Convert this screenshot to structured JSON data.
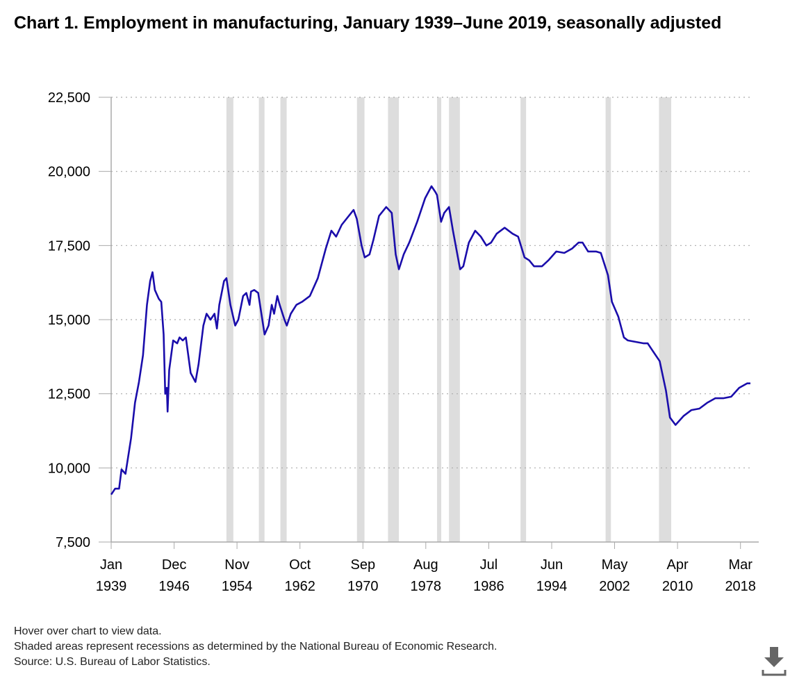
{
  "title": "Chart 1. Employment in manufacturing, January 1939–June 2019, seasonally adjusted",
  "notes": [
    "Hover over chart to view data.",
    "Shaded areas represent recessions as determined by the National Bureau of Economic Research.",
    "Source: U.S. Bureau of Labor Statistics."
  ],
  "download_icon": "download-icon",
  "colors": {
    "line": "#1a0dab",
    "recession": "#dddddd",
    "grid": "#aaaaaa"
  },
  "chart_data": {
    "type": "line",
    "title": "Chart 1. Employment in manufacturing, January 1939–June 2019, seasonally adjusted",
    "xlabel": "",
    "ylabel": "",
    "xlim": [
      1939.0,
      2019.42
    ],
    "ylim": [
      7500,
      22500
    ],
    "grid": "horizontal dotted",
    "yticks": [
      7500,
      10000,
      12500,
      15000,
      17500,
      20000,
      22500
    ],
    "ytick_labels": [
      "7,500",
      "10,000",
      "12,500",
      "15,000",
      "17,500",
      "20,000",
      "22,500"
    ],
    "xticks": [
      {
        "x": 1939.0,
        "label": [
          "Jan",
          "1939"
        ]
      },
      {
        "x": 1946.92,
        "label": [
          "Dec",
          "1946"
        ]
      },
      {
        "x": 1954.83,
        "label": [
          "Nov",
          "1954"
        ]
      },
      {
        "x": 1962.75,
        "label": [
          "Oct",
          "1962"
        ]
      },
      {
        "x": 1970.67,
        "label": [
          "Sep",
          "1970"
        ]
      },
      {
        "x": 1978.58,
        "label": [
          "Aug",
          "1978"
        ]
      },
      {
        "x": 1986.5,
        "label": [
          "Jul",
          "1986"
        ]
      },
      {
        "x": 1994.42,
        "label": [
          "Jun",
          "1994"
        ]
      },
      {
        "x": 2002.33,
        "label": [
          "May",
          "2002"
        ]
      },
      {
        "x": 2010.25,
        "label": [
          "Apr",
          "2010"
        ]
      },
      {
        "x": 2018.17,
        "label": [
          "Mar",
          "2018"
        ]
      }
    ],
    "recessions": [
      [
        1953.5,
        1954.37
      ],
      [
        1957.58,
        1958.29
      ],
      [
        1960.29,
        1961.08
      ],
      [
        1969.92,
        1970.87
      ],
      [
        1973.83,
        1975.2
      ],
      [
        1980.0,
        1980.5
      ],
      [
        1981.5,
        1982.87
      ],
      [
        1990.5,
        1991.2
      ],
      [
        2001.2,
        2001.87
      ],
      [
        2007.92,
        2009.45
      ]
    ],
    "series": [
      {
        "x": [
          1939.0,
          1939.5,
          1940.0,
          1940.3,
          1940.8,
          1941.5,
          1942.0,
          1942.5,
          1943.0,
          1943.5,
          1943.9,
          1944.2,
          1944.5,
          1945.0,
          1945.3,
          1945.6,
          1945.8,
          1946.0,
          1946.1,
          1946.3,
          1946.8,
          1947.3,
          1947.6,
          1948.0,
          1948.4,
          1949.0,
          1949.6,
          1950.0,
          1950.6,
          1951.0,
          1951.5,
          1952.0,
          1952.3,
          1952.6,
          1953.2,
          1953.5,
          1954.0,
          1954.6,
          1955.0,
          1955.6,
          1956.0,
          1956.4,
          1956.6,
          1957.0,
          1957.5,
          1958.3,
          1958.8,
          1959.2,
          1959.5,
          1959.9,
          1960.2,
          1960.8,
          1961.1,
          1961.6,
          1962.3,
          1963.0,
          1964.0,
          1965.0,
          1966.0,
          1966.7,
          1967.3,
          1968.0,
          1969.5,
          1969.9,
          1970.5,
          1970.9,
          1971.5,
          1972.0,
          1972.7,
          1973.6,
          1974.3,
          1974.8,
          1975.2,
          1975.8,
          1976.5,
          1977.5,
          1978.5,
          1979.3,
          1979.8,
          1980.0,
          1980.5,
          1980.9,
          1981.5,
          1982.0,
          1982.9,
          1983.3,
          1984.0,
          1984.8,
          1985.5,
          1986.2,
          1986.8,
          1987.5,
          1988.5,
          1989.5,
          1990.2,
          1991.0,
          1991.6,
          1992.2,
          1993.2,
          1994.0,
          1995.0,
          1996.0,
          1997.0,
          1997.8,
          1998.3,
          1999.0,
          2000.0,
          2000.6,
          2001.5,
          2002.0,
          2002.8,
          2003.5,
          2004.0,
          2005.0,
          2006.0,
          2006.5,
          2007.0,
          2008.0,
          2008.8,
          2009.3,
          2010.0,
          2011.0,
          2012.0,
          2013.0,
          2014.0,
          2015.0,
          2016.0,
          2017.0,
          2018.0,
          2019.0,
          2019.42
        ],
        "values": [
          9100,
          9300,
          9300,
          9950,
          9800,
          11000,
          12200,
          12900,
          13800,
          15500,
          16300,
          16600,
          16000,
          15700,
          15600,
          14500,
          12500,
          12700,
          11900,
          13300,
          14300,
          14200,
          14400,
          14300,
          14400,
          13200,
          12900,
          13500,
          14800,
          15200,
          15000,
          15200,
          14700,
          15500,
          16300,
          16400,
          15500,
          14800,
          15000,
          15800,
          15900,
          15500,
          15950,
          16000,
          15900,
          14500,
          14800,
          15500,
          15200,
          15800,
          15500,
          15000,
          14800,
          15200,
          15500,
          15600,
          15800,
          16400,
          17400,
          18000,
          17800,
          18200,
          18700,
          18400,
          17500,
          17100,
          17200,
          17700,
          18500,
          18800,
          18600,
          17200,
          16700,
          17200,
          17600,
          18300,
          19100,
          19500,
          19300,
          19200,
          18300,
          18600,
          18800,
          18000,
          16700,
          16800,
          17600,
          18000,
          17800,
          17500,
          17600,
          17900,
          18100,
          17900,
          17800,
          17100,
          17000,
          16800,
          16800,
          17000,
          17300,
          17250,
          17400,
          17600,
          17600,
          17300,
          17300,
          17250,
          16500,
          15600,
          15100,
          14400,
          14300,
          14250,
          14200,
          14200,
          14000,
          13600,
          12600,
          11700,
          11450,
          11750,
          11950,
          12000,
          12200,
          12350,
          12350,
          12400,
          12700,
          12850,
          12850
        ]
      }
    ]
  }
}
